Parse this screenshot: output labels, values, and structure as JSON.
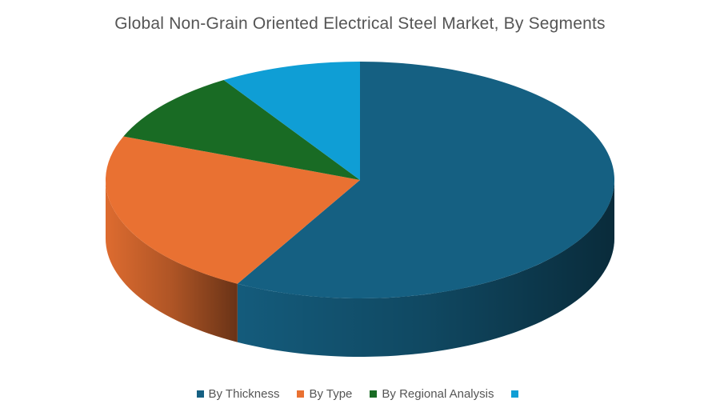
{
  "chart_data": {
    "type": "pie",
    "title": "Global Non-Grain Oriented Electrical Steel Market, By Segments",
    "categories": [
      "By Thickness",
      "By Type",
      "By Regional Analysis",
      ""
    ],
    "values": [
      58,
      23,
      10,
      9
    ],
    "colors": [
      "#156082",
      "#E97132",
      "#196B24",
      "#0F9ED5"
    ],
    "legend": "bottom",
    "style": "3d"
  }
}
